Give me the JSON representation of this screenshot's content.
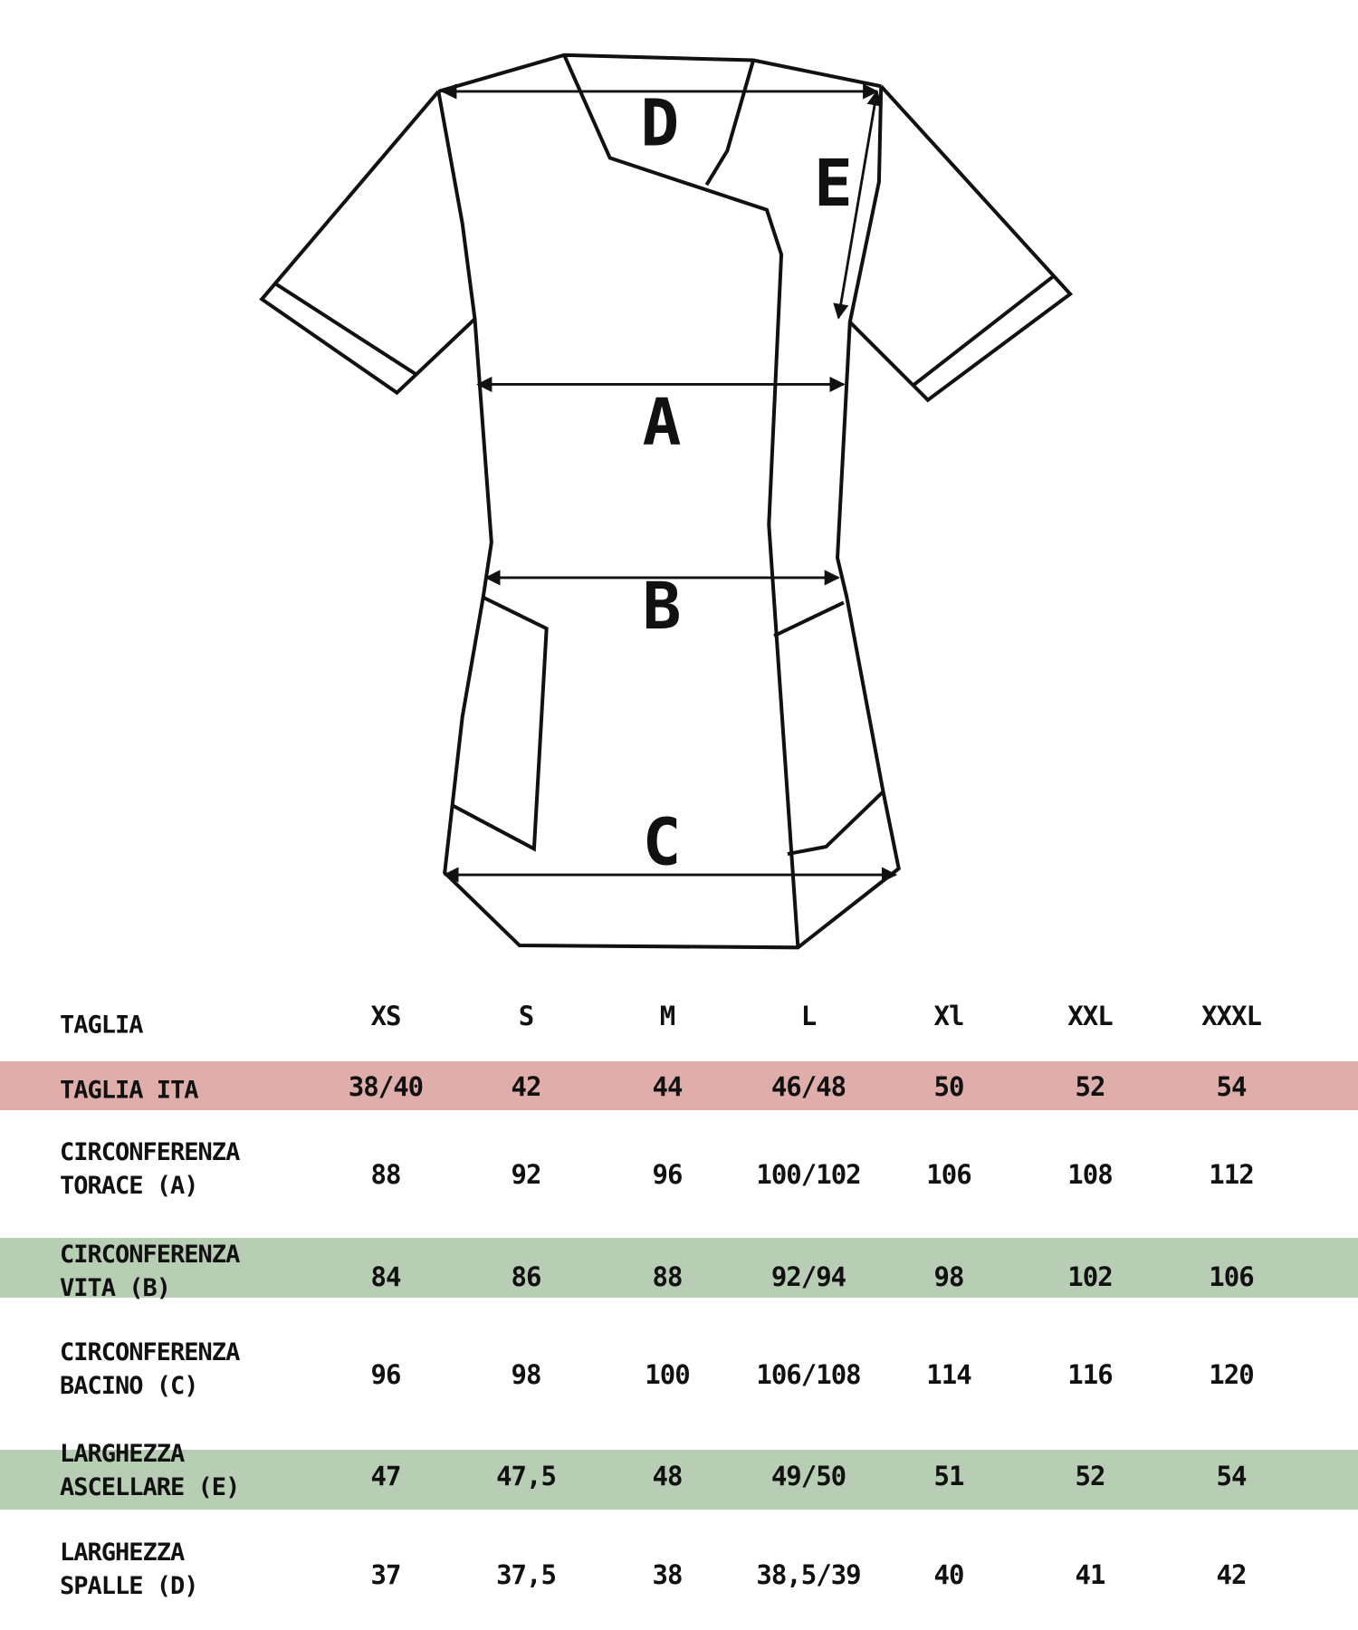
{
  "diagram": {
    "measure_labels": [
      "D",
      "E",
      "A",
      "B",
      "C"
    ]
  },
  "colors": {
    "pink_band": "#dfaeaa",
    "green_band": "#b8ceb4"
  },
  "table": {
    "header_label": "TAGLIA",
    "sizes": [
      "XS",
      "S",
      "M",
      "L",
      "Xl",
      "XXL",
      "XXXL"
    ],
    "rows": [
      {
        "label": "TAGLIA ITA",
        "values": [
          "38/40",
          "42",
          "44",
          "46/48",
          "50",
          "52",
          "54"
        ],
        "band": "pink"
      },
      {
        "label": "CIRCONFERENZA\nTORACE (A)",
        "values": [
          "88",
          "92",
          "96",
          "100/102",
          "106",
          "108",
          "112"
        ],
        "band": "none"
      },
      {
        "label": "CIRCONFERENZA\nVITA (B)",
        "values": [
          "84",
          "86",
          "88",
          "92/94",
          "98",
          "102",
          "106"
        ],
        "band": "green"
      },
      {
        "label": "CIRCONFERENZA\nBACINO (C)",
        "values": [
          "96",
          "98",
          "100",
          "106/108",
          "114",
          "116",
          "120"
        ],
        "band": "none"
      },
      {
        "label": "LARGHEZZA\nASCELLARE (E)",
        "values": [
          "47",
          "47,5",
          "48",
          "49/50",
          "51",
          "52",
          "54"
        ],
        "band": "green"
      },
      {
        "label": "LARGHEZZA\nSPALLE (D)",
        "values": [
          "37",
          "37,5",
          "38",
          "38,5/39",
          "40",
          "41",
          "42"
        ],
        "band": "none"
      }
    ]
  }
}
